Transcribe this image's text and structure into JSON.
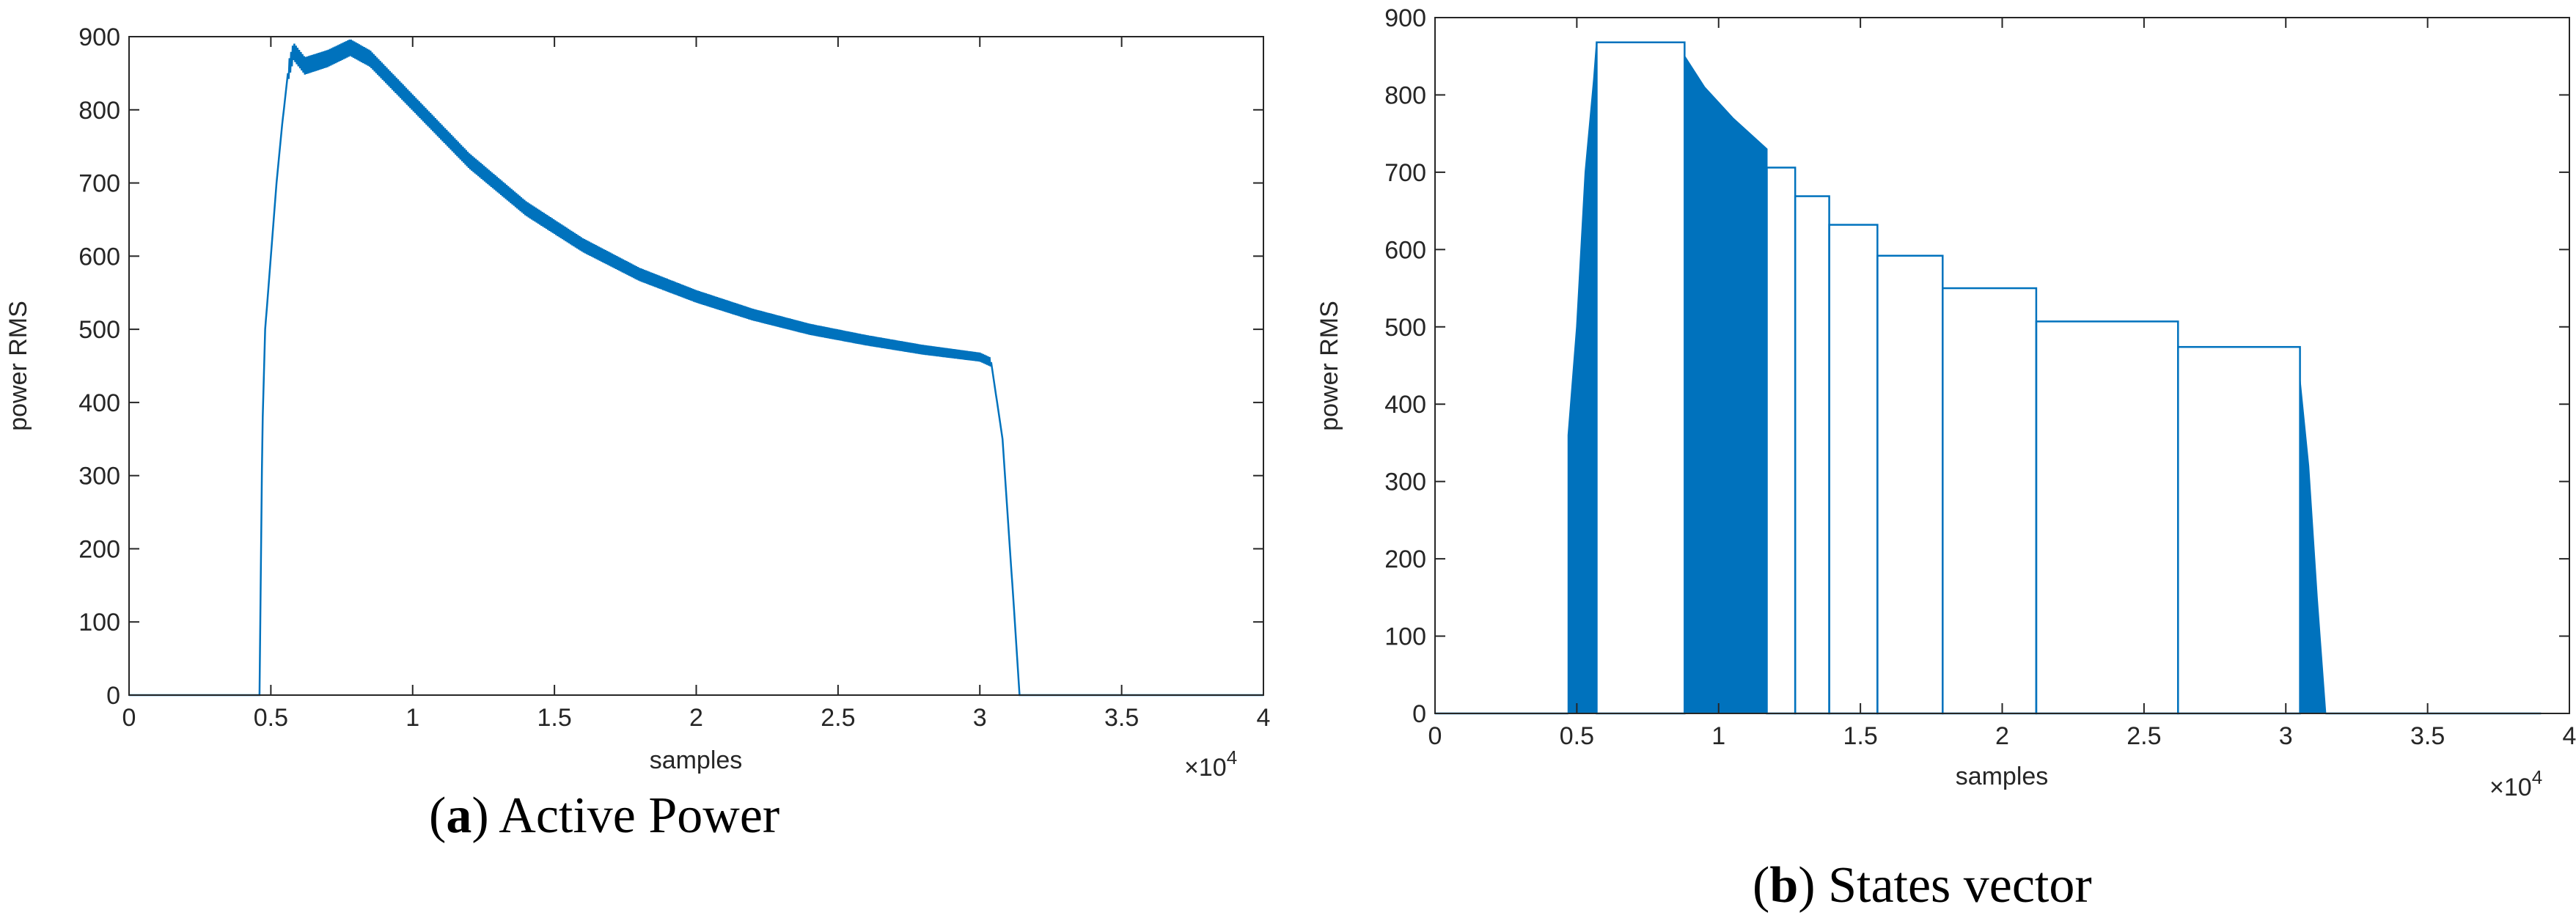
{
  "chart_data": [
    {
      "type": "line",
      "caption": {
        "letter": "a",
        "text": "Active Power"
      },
      "xlabel": "samples",
      "ylabel": "power RMS",
      "x_exponent_label": "×10",
      "x_exponent_power": "4",
      "xlim": [
        0,
        4
      ],
      "ylim": [
        0,
        900
      ],
      "xticks": [
        "0",
        "0.5",
        "1",
        "1.5",
        "2",
        "2.5",
        "3",
        "3.5",
        "4"
      ],
      "yticks": [
        "0",
        "100",
        "200",
        "300",
        "400",
        "500",
        "600",
        "700",
        "800",
        "900"
      ],
      "line_color": "#0072BD",
      "series": [
        {
          "x": [
            0,
            0.46,
            0.47,
            0.48,
            0.5,
            0.52,
            0.54,
            0.56,
            0.58,
            0.62,
            0.7,
            0.78,
            0.85,
            0.95,
            1.05,
            1.2,
            1.4,
            1.6,
            1.8,
            2.0,
            2.2,
            2.4,
            2.6,
            2.8,
            3.0,
            3.04,
            3.08,
            3.12,
            3.14,
            3.15,
            4.0
          ],
          "y": [
            0,
            0,
            360,
            500,
            600,
            700,
            780,
            850,
            880,
            860,
            870,
            885,
            870,
            830,
            790,
            730,
            665,
            615,
            575,
            545,
            520,
            500,
            485,
            472,
            462,
            455,
            350,
            120,
            0,
            0,
            0
          ]
        }
      ],
      "oscillation_amplitude": 12
    },
    {
      "type": "area",
      "caption": {
        "letter": "b",
        "text": "States vector"
      },
      "xlabel": "samples",
      "ylabel": "power RMS",
      "x_exponent_label": "×10",
      "x_exponent_power": "4",
      "xlim": [
        0,
        4
      ],
      "ylim": [
        0,
        900
      ],
      "xticks": [
        "0",
        "0.5",
        "1",
        "1.5",
        "2",
        "2.5",
        "3",
        "3.5",
        "4"
      ],
      "yticks": [
        "0",
        "100",
        "200",
        "300",
        "400",
        "500",
        "600",
        "700",
        "800",
        "900"
      ],
      "line_color": "#0072BD",
      "states": [
        {
          "x0": 0.57,
          "x1": 0.88,
          "y": 868
        },
        {
          "x0": 1.17,
          "x1": 1.27,
          "y": 706
        },
        {
          "x0": 1.27,
          "x1": 1.39,
          "y": 669
        },
        {
          "x0": 1.39,
          "x1": 1.56,
          "y": 632
        },
        {
          "x0": 1.56,
          "x1": 1.79,
          "y": 592
        },
        {
          "x0": 1.79,
          "x1": 2.12,
          "y": 550
        },
        {
          "x0": 2.12,
          "x1": 2.62,
          "y": 507
        },
        {
          "x0": 2.62,
          "x1": 3.05,
          "y": 474
        }
      ],
      "filled_regions": [
        {
          "x": [
            0.47,
            0.5,
            0.53,
            0.56,
            0.57
          ],
          "y": [
            360,
            500,
            700,
            820,
            868
          ]
        },
        {
          "x": [
            0.88,
            0.95,
            1.05,
            1.17
          ],
          "y": [
            850,
            810,
            770,
            730
          ]
        },
        {
          "x": [
            3.05,
            3.08,
            3.11,
            3.14
          ],
          "y": [
            430,
            320,
            150,
            0
          ]
        }
      ]
    }
  ]
}
